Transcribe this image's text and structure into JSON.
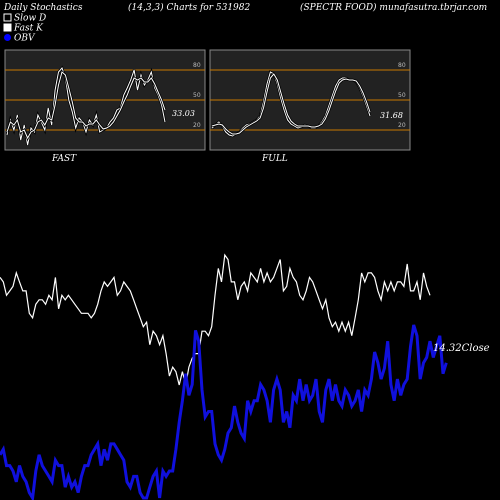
{
  "header": {
    "left": "Daily Stochastics",
    "center": "(14,3,3) Charts for 531982",
    "right": "(SPECTR FOOD) munafasutra.tbrjar.com"
  },
  "legend": [
    {
      "label": "Slow  D",
      "color": "#ffffff",
      "marker": "hollow-square"
    },
    {
      "label": "Fast K",
      "color": "#ffffff",
      "marker": "filled-square"
    },
    {
      "label": "OBV",
      "color": "#0000ff",
      "marker": "circle"
    }
  ],
  "colors": {
    "background": "#000000",
    "panel_bg": "#222222",
    "panel_border": "#888888",
    "level_line": "#c87800",
    "stoch_line": "#ffffff",
    "close_line": "#ffffff",
    "obv_line": "#1010dd"
  },
  "chart_data": [
    {
      "type": "line",
      "name": "fast-panel",
      "label": "FAST",
      "levels": [
        20,
        50,
        80
      ],
      "ylim": [
        0,
        100
      ],
      "end_value_label": "33.03",
      "series": [
        {
          "name": "Fast K",
          "values": [
            15,
            30,
            20,
            35,
            10,
            25,
            5,
            22,
            18,
            35,
            28,
            20,
            42,
            25,
            60,
            78,
            82,
            72,
            50,
            38,
            22,
            32,
            28,
            18,
            30,
            25,
            35,
            18,
            20,
            22,
            28,
            32,
            40,
            42,
            55,
            62,
            70,
            80,
            60,
            75,
            65,
            70,
            78,
            62,
            55,
            45,
            28
          ]
        },
        {
          "name": "Slow  D",
          "values": [
            18,
            28,
            25,
            30,
            18,
            20,
            12,
            18,
            20,
            28,
            30,
            25,
            32,
            30,
            45,
            65,
            78,
            75,
            62,
            48,
            32,
            28,
            28,
            24,
            26,
            26,
            30,
            25,
            21,
            22,
            24,
            28,
            34,
            40,
            48,
            55,
            64,
            72,
            70,
            72,
            68,
            68,
            72,
            66,
            58,
            50,
            40
          ]
        }
      ]
    },
    {
      "type": "line",
      "name": "full-panel",
      "label": "FULL",
      "levels": [
        20,
        50,
        80
      ],
      "ylim": [
        0,
        100
      ],
      "end_value_label": "31.68",
      "series": [
        {
          "name": "Fast K",
          "values": [
            22,
            25,
            28,
            24,
            18,
            15,
            14,
            16,
            18,
            22,
            25,
            26,
            28,
            30,
            34,
            48,
            66,
            78,
            76,
            66,
            52,
            40,
            30,
            26,
            24,
            22,
            23,
            25,
            24,
            22,
            22,
            24,
            28,
            34,
            44,
            54,
            64,
            70,
            72,
            72,
            70,
            70,
            68,
            62,
            54,
            44,
            34
          ]
        },
        {
          "name": "Slow  D",
          "values": [
            24,
            25,
            26,
            25,
            21,
            18,
            16,
            16,
            17,
            20,
            23,
            25,
            27,
            29,
            32,
            42,
            58,
            72,
            76,
            70,
            58,
            46,
            35,
            29,
            26,
            24,
            24,
            24,
            24,
            23,
            23,
            24,
            26,
            31,
            39,
            49,
            59,
            67,
            70,
            71,
            70,
            70,
            69,
            64,
            57,
            48,
            38
          ]
        }
      ]
    },
    {
      "type": "line",
      "name": "price-obv",
      "series": [
        {
          "name": "Close",
          "label": "14.32Close",
          "values": [
            73,
            72,
            69,
            70,
            71,
            74,
            72,
            70,
            70,
            65,
            64,
            67,
            68,
            68,
            67,
            69,
            68,
            73,
            66,
            69,
            68,
            69,
            68,
            67,
            66,
            65,
            65,
            65,
            64,
            65,
            67,
            70,
            72,
            71,
            72,
            73,
            69,
            70,
            72,
            71,
            70,
            68,
            66,
            64,
            62,
            63,
            58,
            61,
            60,
            58,
            60,
            56,
            51,
            53,
            52,
            49,
            52,
            49,
            53,
            55,
            56,
            56,
            61,
            61,
            60,
            62,
            69,
            75,
            72,
            78,
            77,
            72,
            72,
            68,
            71,
            72,
            70,
            74,
            73,
            72,
            75,
            72,
            74,
            72,
            73,
            75,
            77,
            70,
            71,
            75,
            73,
            72,
            69,
            68,
            70,
            73,
            72,
            70,
            68,
            66,
            68,
            64,
            62,
            63,
            61,
            63,
            61,
            63,
            60,
            64,
            68,
            74,
            72,
            74,
            74,
            73,
            70,
            68,
            72,
            70,
            72,
            70,
            72,
            72,
            71,
            76,
            70,
            70,
            72,
            68,
            74,
            71,
            69
          ]
        },
        {
          "name": "OBV",
          "values": [
            100,
            101,
            98,
            98,
            97,
            95,
            98,
            96,
            95,
            93,
            92,
            97,
            100,
            98,
            97,
            96,
            95,
            99,
            98,
            98,
            94,
            96,
            94,
            95,
            93,
            96,
            98,
            98,
            100,
            101,
            102,
            98,
            101,
            99,
            102,
            102,
            101,
            100,
            99,
            95,
            94,
            96,
            96,
            93,
            92,
            92,
            94,
            96,
            97,
            92,
            97,
            96,
            97,
            97,
            101,
            106,
            110,
            115,
            111,
            113,
            123,
            121,
            112,
            107,
            108,
            108,
            102,
            100,
            99,
            101,
            104,
            105,
            109,
            106,
            104,
            103,
            110,
            108,
            110,
            110,
            113,
            112,
            110,
            106,
            112,
            114,
            112,
            106,
            108,
            105,
            111,
            110,
            114,
            110,
            113,
            110,
            111,
            114,
            108,
            106,
            112,
            114,
            110,
            113,
            110,
            109,
            112,
            111,
            109,
            110,
            112,
            108,
            112,
            111,
            114,
            119,
            117,
            114,
            116,
            121,
            113,
            110,
            114,
            111,
            113,
            114,
            120,
            124,
            122,
            114,
            117,
            118,
            121,
            118,
            120,
            122,
            115,
            117
          ]
        }
      ]
    }
  ]
}
